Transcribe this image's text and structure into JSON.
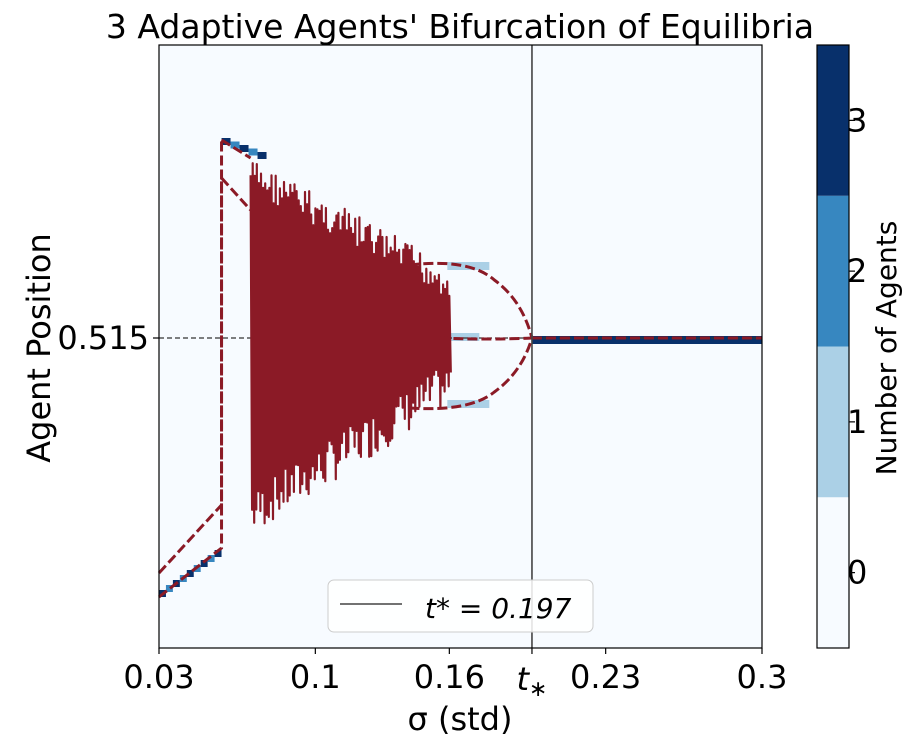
{
  "chart_data": {
    "type": "heatmap",
    "title": "3 Adaptive Agents' Bifurcation of Equilibria",
    "xlabel": "σ (std)",
    "ylabel": "Agent Position",
    "xlim": [
      0.03,
      0.3
    ],
    "x_ticks": [
      {
        "value": 0.03,
        "label": "0.03"
      },
      {
        "value": 0.1,
        "label": "0.1"
      },
      {
        "value": 0.16,
        "label": "0.16"
      },
      {
        "value": 0.197,
        "label": "t*"
      },
      {
        "value": 0.23,
        "label": "0.23"
      },
      {
        "value": 0.3,
        "label": "0.3"
      }
    ],
    "y_ticks": [
      {
        "value": 0.515,
        "label": "0.515"
      }
    ],
    "reference_line_y": 0.515,
    "critical_line": {
      "x": 0.197,
      "legend": "t* = 0.197"
    },
    "legend_position": "bottom-center",
    "colorbar": {
      "label": "Number of Agents",
      "levels": [
        {
          "value": 0,
          "label": "0",
          "color": "#f7fbff"
        },
        {
          "value": 1,
          "label": "1",
          "color": "#abd0e6"
        },
        {
          "value": 2,
          "label": "2",
          "color": "#3787c0"
        },
        {
          "value": 3,
          "label": "3",
          "color": "#08306b"
        }
      ]
    },
    "curve_color": "#8b1a26",
    "series_description_x": {
      "low_branch_end": 0.058,
      "jump_x": 0.058,
      "oscillation_start": 0.071,
      "oscillation_end": 0.16,
      "converge_x": 0.197
    }
  }
}
